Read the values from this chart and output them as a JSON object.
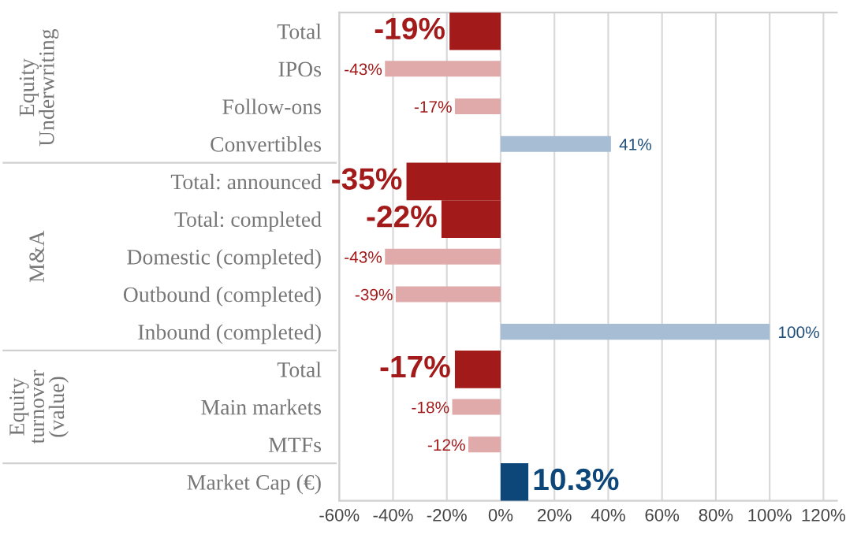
{
  "chart_data": {
    "type": "bar",
    "orientation": "horizontal",
    "categories": [
      "Total",
      "IPOs",
      "Follow-ons",
      "Convertibles",
      "Total: announced",
      "Total: completed",
      "Domestic (completed)",
      "Outbound (completed)",
      "Inbound (completed)",
      "Total",
      "Main markets",
      "MTFs",
      "Market Cap (€)"
    ],
    "values": [
      -19,
      -43,
      -17,
      41,
      -35,
      -22,
      -43,
      -39,
      100,
      -17,
      -18,
      -12,
      10.3
    ],
    "colors": [
      "#a31a1a",
      "#e0aaab",
      "#e0aaab",
      "#a6bdd3",
      "#a31a1a",
      "#a31a1a",
      "#e0aaab",
      "#e0aaab",
      "#a6bdd3",
      "#a31a1a",
      "#e0aaab",
      "#e0aaab",
      "#0d477a"
    ],
    "value_labels": [
      "-19%",
      "-43%",
      "-17%",
      "41%",
      "-35%",
      "-22%",
      "-43%",
      "-39%",
      "100%",
      "-17%",
      "-18%",
      "-12%",
      "10.3%"
    ],
    "xlim": [
      -60,
      125
    ],
    "xticks": [
      {
        "value": -60,
        "label": "-60%"
      },
      {
        "value": -40,
        "label": "-40%"
      },
      {
        "value": -20,
        "label": "-20%"
      },
      {
        "value": 0,
        "label": "0%"
      },
      {
        "value": 20,
        "label": "20%"
      },
      {
        "value": 40,
        "label": "40%"
      },
      {
        "value": 60,
        "label": "60%"
      },
      {
        "value": 80,
        "label": "80%"
      },
      {
        "value": 100,
        "label": "100%"
      },
      {
        "value": 120,
        "label": "120%"
      }
    ],
    "grid": "x",
    "annotations": [
      "Equity Underwriting",
      "M&A",
      "Equity turnover (value)"
    ]
  }
}
